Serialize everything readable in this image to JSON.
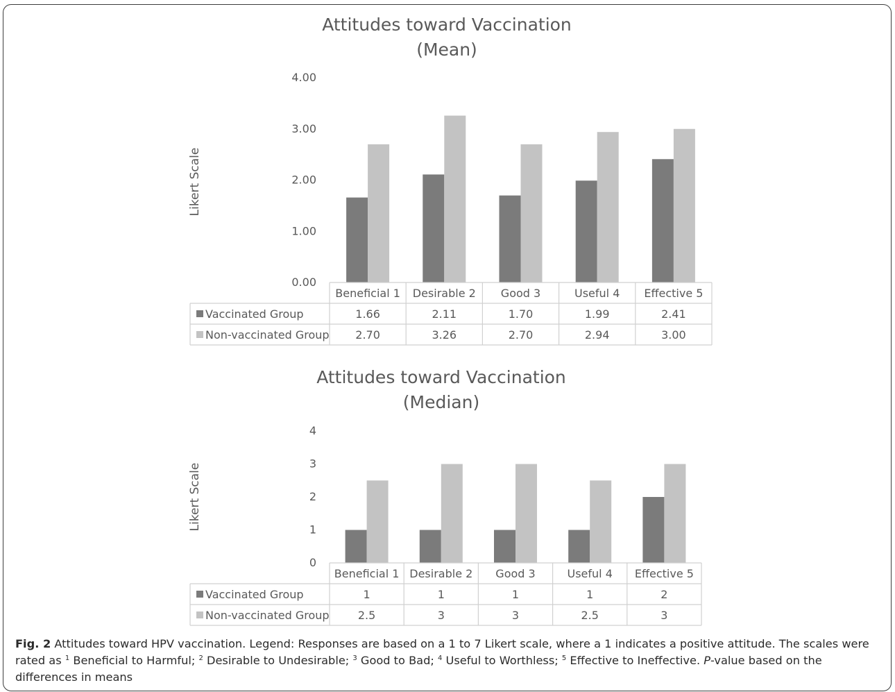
{
  "chart_data": [
    {
      "type": "bar",
      "title": "Attitudes toward Vaccination",
      "subtitle": "(Mean)",
      "ylabel": "Likert Scale",
      "xlabel": "",
      "ylim": [
        0,
        4
      ],
      "ytick_labels": [
        "0.00",
        "1.00",
        "2.00",
        "3.00",
        "4.00"
      ],
      "grid": false,
      "legend": "data-table",
      "categories": [
        "Beneficial 1",
        "Desirable 2",
        "Good 3",
        "Useful 4",
        "Effective 5"
      ],
      "series": [
        {
          "name": "Vaccinated Group",
          "color": "#7b7b7b",
          "values": [
            1.66,
            2.11,
            1.7,
            1.99,
            2.41
          ],
          "labels": [
            "1.66",
            "2.11",
            "1.70",
            "1.99",
            "2.41"
          ]
        },
        {
          "name": "Non-vaccinated Group",
          "color": "#c3c3c3",
          "values": [
            2.7,
            3.26,
            2.7,
            2.94,
            3.0
          ],
          "labels": [
            "2.70",
            "3.26",
            "2.70",
            "2.94",
            "3.00"
          ]
        }
      ]
    },
    {
      "type": "bar",
      "title": "Attitudes toward Vaccination",
      "subtitle": "(Median)",
      "ylabel": "Likert Scale",
      "xlabel": "",
      "ylim": [
        0,
        4
      ],
      "ytick_labels": [
        "0",
        "1",
        "2",
        "3",
        "4"
      ],
      "grid": false,
      "legend": "data-table",
      "categories": [
        "Beneficial 1",
        "Desirable 2",
        "Good 3",
        "Useful 4",
        "Effective 5"
      ],
      "series": [
        {
          "name": "Vaccinated Group",
          "color": "#7b7b7b",
          "values": [
            1,
            1,
            1,
            1,
            2
          ],
          "labels": [
            "1",
            "1",
            "1",
            "1",
            "2"
          ]
        },
        {
          "name": "Non-vaccinated Group",
          "color": "#c3c3c3",
          "values": [
            2.5,
            3,
            3,
            2.5,
            3
          ],
          "labels": [
            "2.5",
            "3",
            "3",
            "2.5",
            "3"
          ]
        }
      ]
    }
  ],
  "caption": {
    "fig_label": "Fig. 2",
    "text_1": " Attitudes toward HPV vaccination. Legend: Responses are based on a 1 to 7 Likert scale, where a 1 indicates a positive attitude. The scales were rated as ",
    "sup_1": "1",
    "text_2": " Beneficial to Harmful; ",
    "sup_2": "2",
    "text_3": " Desirable to Undesirable; ",
    "sup_3": "3",
    "text_4": " Good to Bad; ",
    "sup_4": "4",
    "text_5": " Useful to Worthless; ",
    "sup_5": "5",
    "text_6": " Effective to Ineffective. ",
    "p_italic": "P",
    "text_7": "-value based on the differences in means"
  }
}
